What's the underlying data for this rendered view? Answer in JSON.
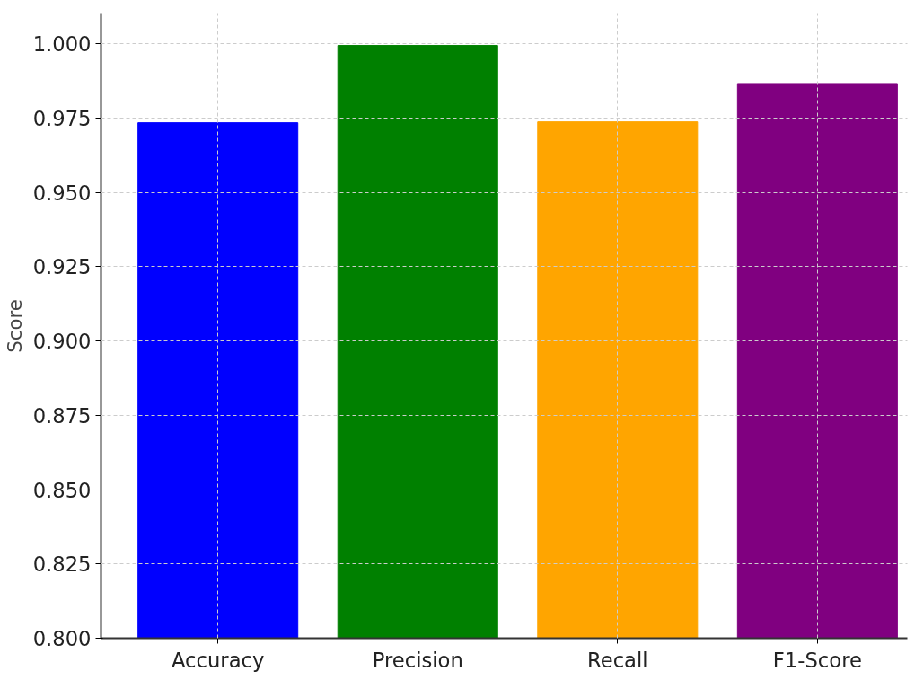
{
  "chart_data": {
    "type": "bar",
    "ylabel": "Score",
    "categories": [
      "Accuracy",
      "Precision",
      "Recall",
      "F1-Score"
    ],
    "values": [
      0.9734,
      0.9994,
      0.9737,
      0.9866
    ],
    "colors": [
      "#0000ff",
      "#008000",
      "#ffa500",
      "#800080"
    ],
    "ylim": [
      0.8,
      1.01
    ],
    "yticks": [
      {
        "value": 0.8,
        "label": "0.800"
      },
      {
        "value": 0.825,
        "label": "0.825"
      },
      {
        "value": 0.85,
        "label": "0.850"
      },
      {
        "value": 0.875,
        "label": "0.875"
      },
      {
        "value": 0.9,
        "label": "0.900"
      },
      {
        "value": 0.925,
        "label": "0.925"
      },
      {
        "value": 0.95,
        "label": "0.950"
      },
      {
        "value": 0.975,
        "label": "0.975"
      },
      {
        "value": 1.0,
        "label": "1.000"
      }
    ],
    "grid": true
  }
}
